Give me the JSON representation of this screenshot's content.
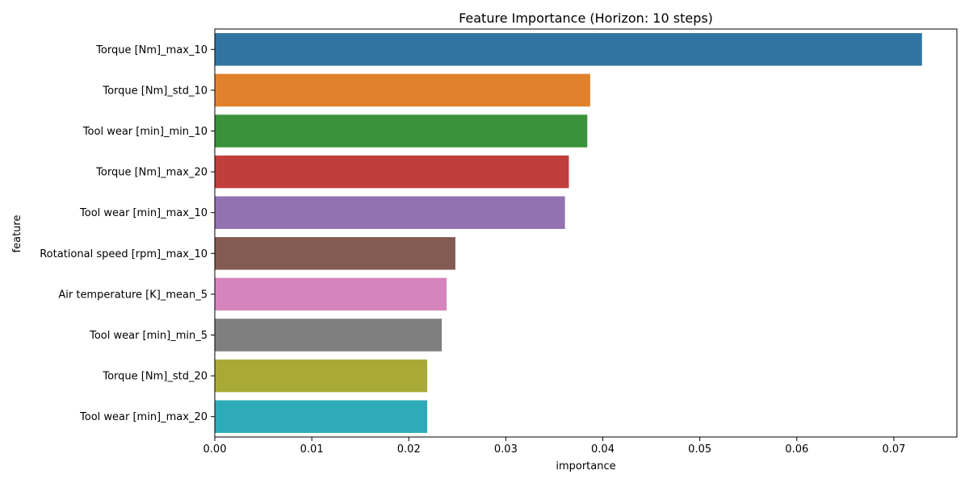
{
  "chart_data": {
    "type": "bar",
    "orientation": "horizontal",
    "title": "Feature Importance (Horizon: 10 steps)",
    "xlabel": "importance",
    "ylabel": "feature",
    "xlim": [
      0,
      0.0765
    ],
    "xticks": [
      "0.00",
      "0.01",
      "0.02",
      "0.03",
      "0.04",
      "0.05",
      "0.06",
      "0.07"
    ],
    "xtick_values": [
      0,
      0.01,
      0.02,
      0.03,
      0.04,
      0.05,
      0.06,
      0.07
    ],
    "grid": false,
    "categories": [
      "Torque [Nm]_max_10",
      "Torque [Nm]_std_10",
      "Tool wear [min]_min_10",
      "Torque [Nm]_max_20",
      "Tool wear [min]_max_10",
      "Rotational speed [rpm]_max_10",
      "Air temperature [K]_mean_5",
      "Tool wear [min]_min_5",
      "Torque [Nm]_std_20",
      "Tool wear [min]_max_20"
    ],
    "values": [
      0.0729,
      0.0387,
      0.0384,
      0.0365,
      0.0361,
      0.0248,
      0.0239,
      0.0234,
      0.0219,
      0.0219
    ],
    "colors": [
      "#3274a1",
      "#e1812c",
      "#3a923a",
      "#c03d3e",
      "#9372b2",
      "#845b53",
      "#d684bd",
      "#7f7f7f",
      "#a9aa35",
      "#2eabb8"
    ]
  }
}
